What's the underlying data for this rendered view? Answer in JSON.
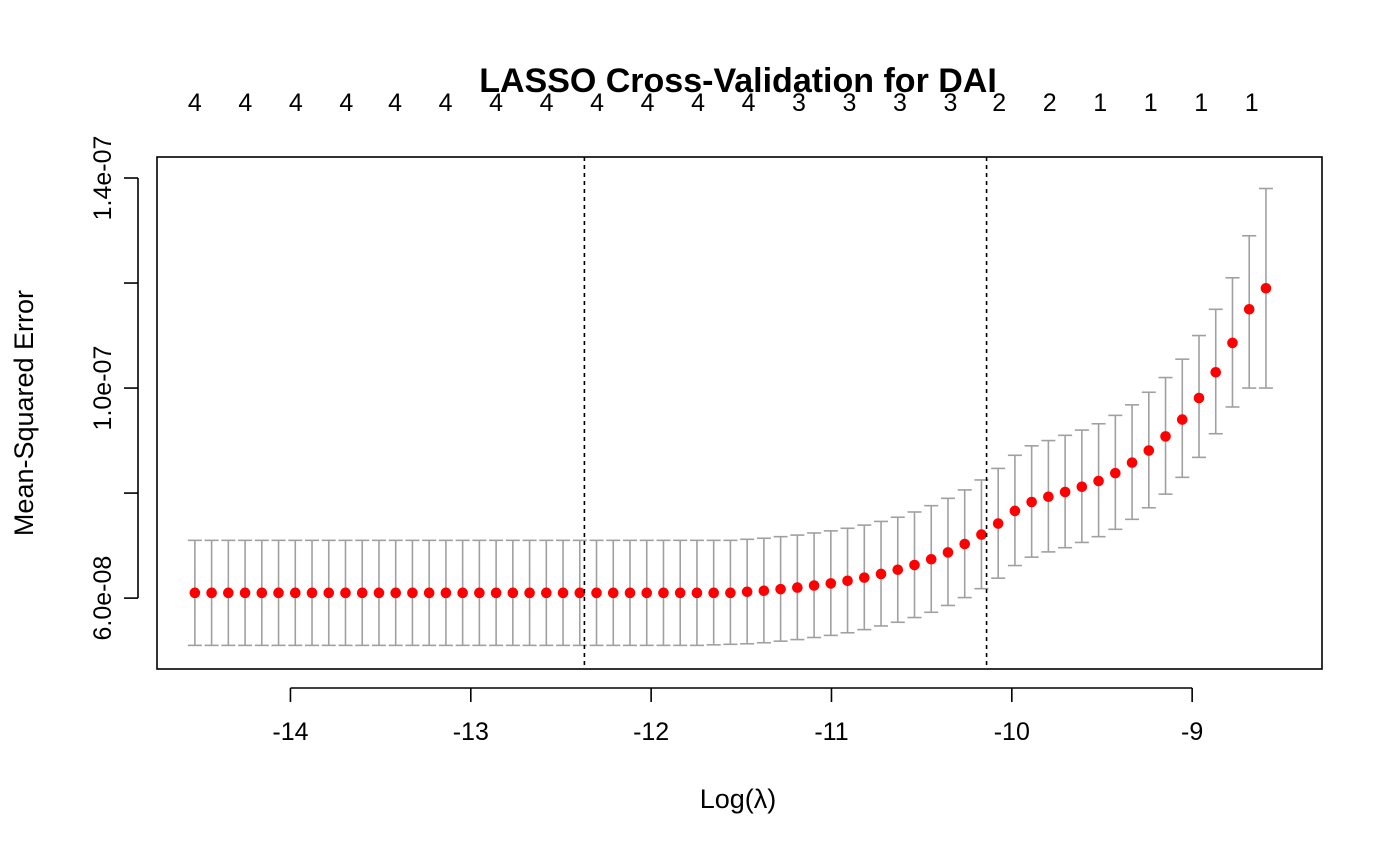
{
  "chart_data": {
    "type": "scatter",
    "title": "LASSO Cross-Validation for DAI",
    "xlabel": "Log(λ)",
    "ylabel": "Mean-Squared Error",
    "xlim": [
      -14.74,
      -8.28
    ],
    "ylim": [
      4.65e-08,
      1.44e-07
    ],
    "x_ticks": [
      {
        "value": -14,
        "label": "-14"
      },
      {
        "value": -13,
        "label": "-13"
      },
      {
        "value": -12,
        "label": "-12"
      },
      {
        "value": -11,
        "label": "-11"
      },
      {
        "value": -10,
        "label": "-10"
      },
      {
        "value": -9,
        "label": "-9"
      }
    ],
    "y_ticks": [
      {
        "value": 6e-08,
        "label": "6.0e-08"
      },
      {
        "value": 8e-08,
        "label": ""
      },
      {
        "value": 1e-07,
        "label": "1.0e-07"
      },
      {
        "value": 1.2e-07,
        "label": ""
      },
      {
        "value": 1.4e-07,
        "label": "1.4e-07"
      }
    ],
    "top_axis": [
      {
        "x": -14.53,
        "label": "4"
      },
      {
        "x": -14.25,
        "label": "4"
      },
      {
        "x": -13.97,
        "label": "4"
      },
      {
        "x": -13.69,
        "label": "4"
      },
      {
        "x": -13.42,
        "label": "4"
      },
      {
        "x": -13.14,
        "label": "4"
      },
      {
        "x": -12.86,
        "label": "4"
      },
      {
        "x": -12.58,
        "label": "4"
      },
      {
        "x": -12.3,
        "label": "4"
      },
      {
        "x": -12.02,
        "label": "4"
      },
      {
        "x": -11.74,
        "label": "4"
      },
      {
        "x": -11.46,
        "label": "4"
      },
      {
        "x": -11.18,
        "label": "3"
      },
      {
        "x": -10.9,
        "label": "3"
      },
      {
        "x": -10.62,
        "label": "3"
      },
      {
        "x": -10.34,
        "label": "3"
      },
      {
        "x": -10.07,
        "label": "2"
      },
      {
        "x": -9.79,
        "label": "2"
      },
      {
        "x": -9.51,
        "label": "1"
      },
      {
        "x": -9.23,
        "label": "1"
      },
      {
        "x": -8.95,
        "label": "1"
      },
      {
        "x": -8.67,
        "label": "1"
      }
    ],
    "vlines": [
      -12.37,
      -10.14
    ],
    "grid": false,
    "legend": "none",
    "colors": {
      "point": "#ff0000",
      "errorbar": "#a0a0a0",
      "vline": "#000000"
    },
    "mse_points": {
      "x_start": -14.53,
      "x_step": 0.0928,
      "mean": [
        6.1e-08,
        6.1e-08,
        6.1e-08,
        6.1e-08,
        6.1e-08,
        6.1e-08,
        6.1e-08,
        6.1e-08,
        6.1e-08,
        6.1e-08,
        6.1e-08,
        6.1e-08,
        6.1e-08,
        6.1e-08,
        6.1e-08,
        6.1e-08,
        6.1e-08,
        6.1e-08,
        6.1e-08,
        6.1e-08,
        6.1e-08,
        6.1e-08,
        6.1e-08,
        6.1e-08,
        6.1e-08,
        6.1e-08,
        6.1e-08,
        6.1e-08,
        6.1e-08,
        6.1e-08,
        6.1e-08,
        6.1e-08,
        6.1e-08,
        6.12e-08,
        6.14e-08,
        6.17e-08,
        6.2e-08,
        6.24e-08,
        6.28e-08,
        6.33e-08,
        6.39e-08,
        6.46e-08,
        6.54e-08,
        6.63e-08,
        6.74e-08,
        6.87e-08,
        7.03e-08,
        7.21e-08,
        7.42e-08,
        7.66e-08,
        7.83e-08,
        7.93e-08,
        8.02e-08,
        8.12e-08,
        8.23e-08,
        8.38e-08,
        8.58e-08,
        8.81e-08,
        9.08e-08,
        9.4e-08,
        9.81e-08,
        1.03e-07,
        1.086e-07,
        1.15e-07,
        1.19e-07
      ],
      "lower": [
        5.1e-08,
        5.1e-08,
        5.1e-08,
        5.1e-08,
        5.1e-08,
        5.1e-08,
        5.1e-08,
        5.1e-08,
        5.1e-08,
        5.1e-08,
        5.1e-08,
        5.1e-08,
        5.1e-08,
        5.1e-08,
        5.1e-08,
        5.1e-08,
        5.1e-08,
        5.1e-08,
        5.1e-08,
        5.1e-08,
        5.1e-08,
        5.1e-08,
        5.1e-08,
        5.1e-08,
        5.1e-08,
        5.1e-08,
        5.1e-08,
        5.1e-08,
        5.1e-08,
        5.1e-08,
        5.1e-08,
        5.11e-08,
        5.12e-08,
        5.13e-08,
        5.15e-08,
        5.18e-08,
        5.21e-08,
        5.25e-08,
        5.29e-08,
        5.34e-08,
        5.4e-08,
        5.47e-08,
        5.54e-08,
        5.63e-08,
        5.73e-08,
        5.86e-08,
        6.01e-08,
        6.18e-08,
        6.38e-08,
        6.62e-08,
        6.78e-08,
        6.88e-08,
        6.96e-08,
        7.06e-08,
        7.17e-08,
        7.31e-08,
        7.5e-08,
        7.72e-08,
        7.98e-08,
        8.3e-08,
        8.68e-08,
        9.13e-08,
        9.64e-08,
        1e-07,
        1e-07
      ],
      "upper": [
        7.1e-08,
        7.1e-08,
        7.1e-08,
        7.1e-08,
        7.1e-08,
        7.1e-08,
        7.1e-08,
        7.1e-08,
        7.1e-08,
        7.1e-08,
        7.1e-08,
        7.1e-08,
        7.1e-08,
        7.1e-08,
        7.1e-08,
        7.1e-08,
        7.1e-08,
        7.1e-08,
        7.1e-08,
        7.1e-08,
        7.1e-08,
        7.1e-08,
        7.1e-08,
        7.1e-08,
        7.1e-08,
        7.1e-08,
        7.1e-08,
        7.1e-08,
        7.1e-08,
        7.1e-08,
        7.1e-08,
        7.1e-08,
        7.1e-08,
        7.12e-08,
        7.14e-08,
        7.17e-08,
        7.2e-08,
        7.24e-08,
        7.28e-08,
        7.33e-08,
        7.39e-08,
        7.46e-08,
        7.54e-08,
        7.64e-08,
        7.76e-08,
        7.9e-08,
        8.06e-08,
        8.25e-08,
        8.47e-08,
        8.72e-08,
        8.9e-08,
        9e-08,
        9.1e-08,
        9.2e-08,
        9.32e-08,
        9.48e-08,
        9.68e-08,
        9.92e-08,
        1.02e-07,
        1.055e-07,
        1.1e-07,
        1.15e-07,
        1.21e-07,
        1.29e-07,
        1.38e-07
      ]
    }
  }
}
